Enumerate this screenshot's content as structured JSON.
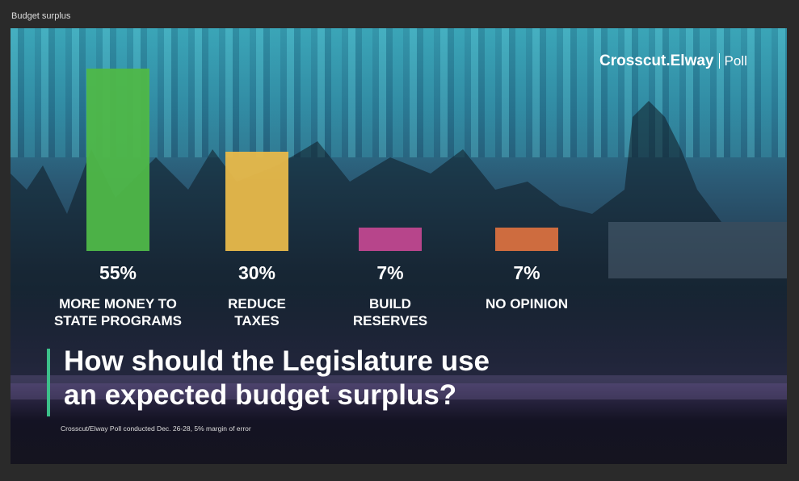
{
  "window_title": "Budget surplus",
  "logo": {
    "brand": "Crosscut.Elway",
    "product": "Poll"
  },
  "chart_data": {
    "type": "bar",
    "title": [
      "How should the Legislature use",
      "an expected budget surplus?"
    ],
    "footnote": "Crosscut/Elway Poll conducted Dec. 26-28, 5% margin of error",
    "categories": [
      [
        "MORE MONEY TO",
        "STATE PROGRAMS"
      ],
      [
        "REDUCE",
        "TAXES"
      ],
      [
        "BUILD",
        "RESERVES"
      ],
      [
        "NO OPINION"
      ]
    ],
    "values": [
      55,
      30,
      7,
      7
    ],
    "value_labels": [
      "55%",
      "30%",
      "7%",
      "7%"
    ],
    "colors": [
      "#4fb848",
      "#e8b94a",
      "#c0478f",
      "#d8703f"
    ]
  }
}
